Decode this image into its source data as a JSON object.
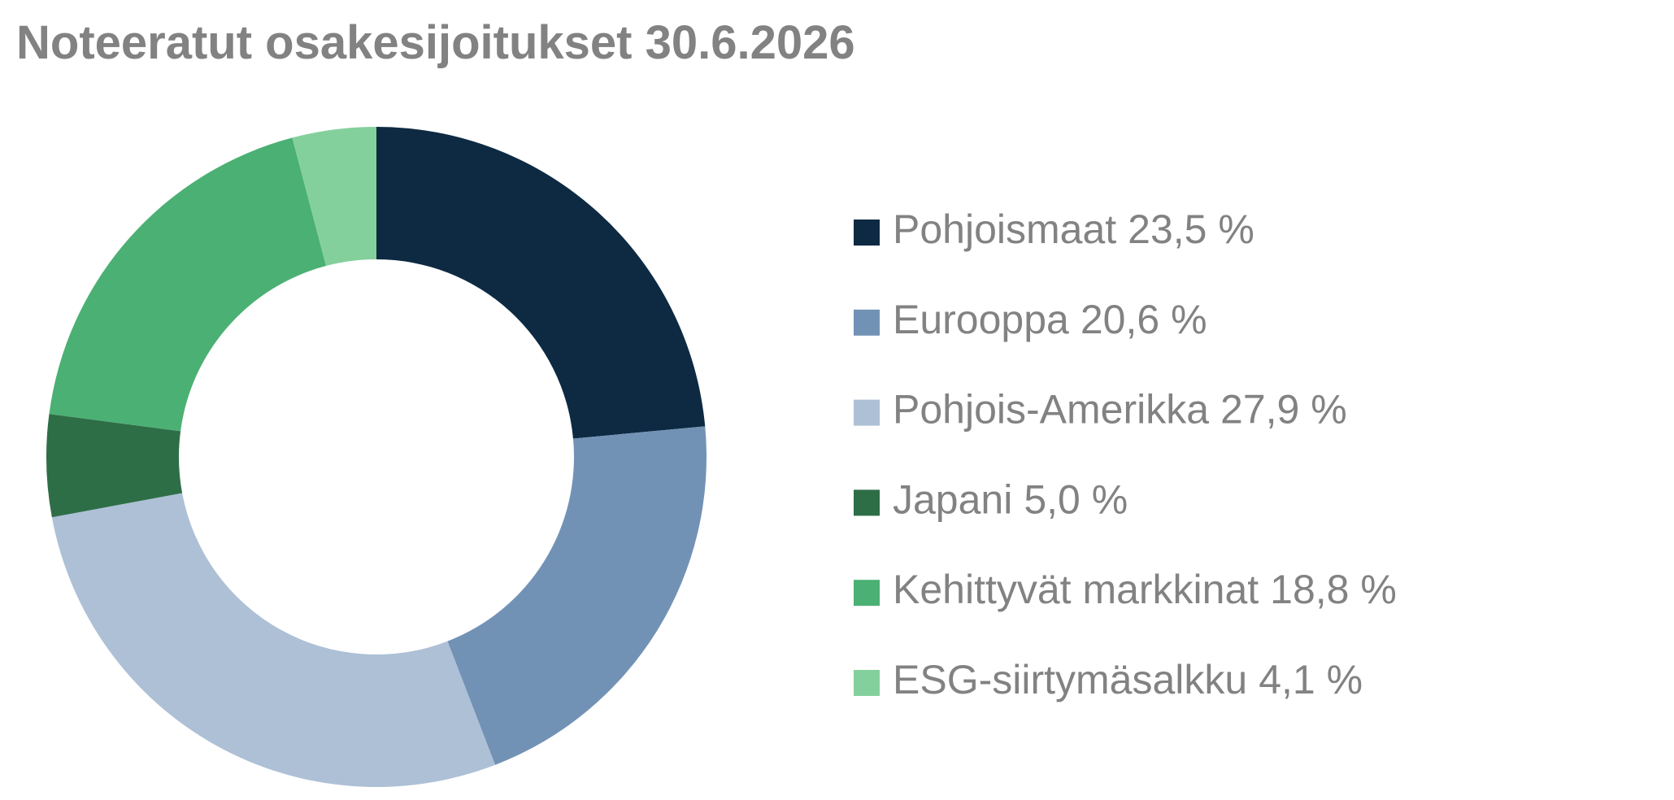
{
  "chart_data": {
    "type": "donut",
    "title": "Noteeratut osakesijoitukset 30.6.2026",
    "categories": [
      "Pohjoismaat",
      "Eurooppa",
      "Pohjois-Amerikka",
      "Japani",
      "Kehittyvät markkinat",
      "ESG-siirtymäsalkku"
    ],
    "values": [
      23.5,
      20.6,
      27.9,
      5.0,
      18.8,
      4.1
    ],
    "value_labels": [
      "23,5 %",
      "20,6 %",
      "27,9 %",
      "5,0 %",
      "18,8 %",
      "4,1 %"
    ],
    "colors": [
      "#0d2a42",
      "#7292b5",
      "#adc0d6",
      "#2e6e47",
      "#4bb073",
      "#84d09c"
    ],
    "legend": "right"
  }
}
